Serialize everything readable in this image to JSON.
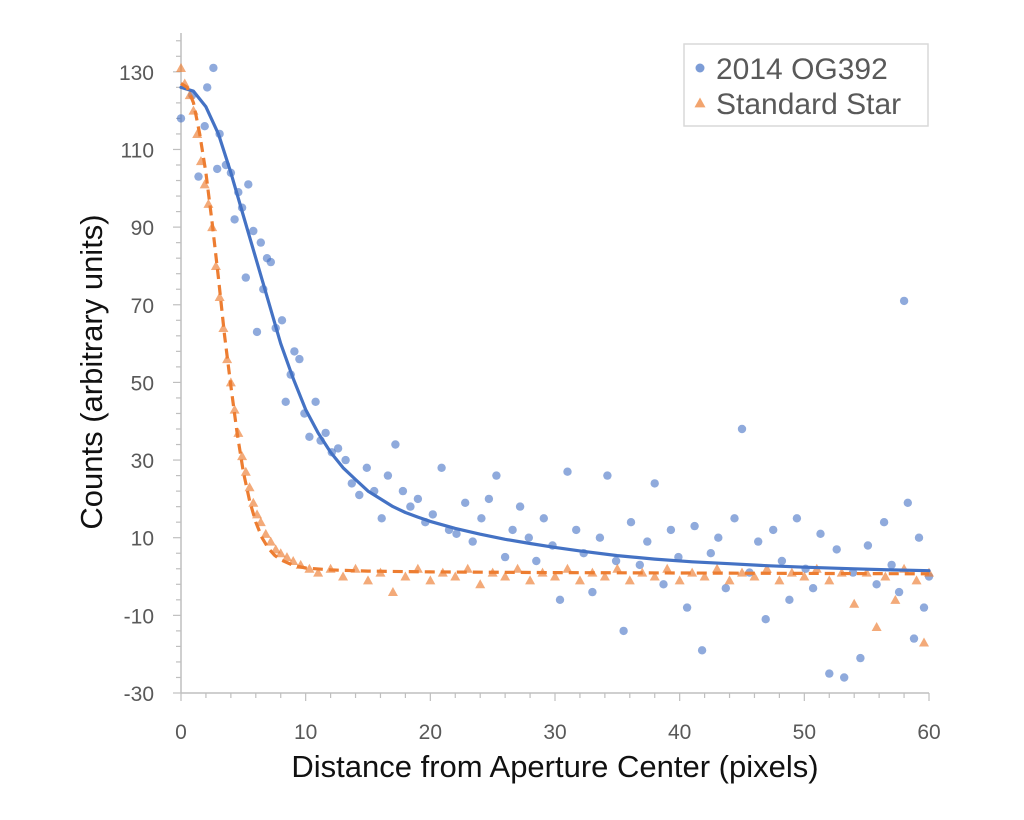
{
  "chart_data": {
    "type": "scatter",
    "title": "",
    "xlabel": "Distance from Aperture Center (pixels)",
    "ylabel": "Counts (arbitrary units)",
    "xlim": [
      0,
      60
    ],
    "ylim": [
      -30,
      140
    ],
    "x_ticks": [
      "0",
      "10",
      "20",
      "30",
      "40",
      "50",
      "60"
    ],
    "y_ticks": [
      "130",
      "110",
      "90",
      "70",
      "50",
      "30",
      "10",
      "-10",
      "-30"
    ],
    "grid": false,
    "legend_position": "top-right",
    "colors": {
      "og392": "#4472C4",
      "standard": "#ED7D31"
    },
    "series": [
      {
        "name": "2014 OG392",
        "marker": "circle",
        "points": [
          [
            0.0,
            118
          ],
          [
            0.9,
            124
          ],
          [
            1.4,
            103
          ],
          [
            1.9,
            116
          ],
          [
            2.1,
            126
          ],
          [
            2.6,
            131
          ],
          [
            2.9,
            105
          ],
          [
            3.1,
            114
          ],
          [
            3.6,
            106
          ],
          [
            4.0,
            104
          ],
          [
            4.3,
            92
          ],
          [
            4.6,
            99
          ],
          [
            4.9,
            95
          ],
          [
            5.2,
            77
          ],
          [
            5.4,
            101
          ],
          [
            5.8,
            89
          ],
          [
            6.1,
            63
          ],
          [
            6.4,
            86
          ],
          [
            6.6,
            74
          ],
          [
            6.9,
            82
          ],
          [
            7.2,
            81
          ],
          [
            7.6,
            64
          ],
          [
            8.1,
            66
          ],
          [
            8.4,
            45
          ],
          [
            8.8,
            52
          ],
          [
            9.1,
            58
          ],
          [
            9.5,
            56
          ],
          [
            9.9,
            42
          ],
          [
            10.3,
            36
          ],
          [
            10.8,
            45
          ],
          [
            11.2,
            35
          ],
          [
            11.6,
            37
          ],
          [
            12.1,
            32
          ],
          [
            12.6,
            33
          ],
          [
            13.2,
            30
          ],
          [
            13.7,
            24
          ],
          [
            14.3,
            21
          ],
          [
            14.9,
            28
          ],
          [
            15.5,
            22
          ],
          [
            16.1,
            15
          ],
          [
            16.6,
            26
          ],
          [
            17.2,
            34
          ],
          [
            17.8,
            22
          ],
          [
            18.4,
            18
          ],
          [
            19.0,
            20
          ],
          [
            19.6,
            14
          ],
          [
            20.2,
            16
          ],
          [
            20.9,
            28
          ],
          [
            21.5,
            12
          ],
          [
            22.1,
            11
          ],
          [
            22.8,
            19
          ],
          [
            23.4,
            9
          ],
          [
            24.1,
            15
          ],
          [
            24.7,
            20
          ],
          [
            25.3,
            26
          ],
          [
            26.0,
            5
          ],
          [
            26.6,
            12
          ],
          [
            27.2,
            18
          ],
          [
            27.9,
            10
          ],
          [
            28.5,
            4
          ],
          [
            29.1,
            15
          ],
          [
            29.8,
            8
          ],
          [
            30.4,
            -6
          ],
          [
            31.0,
            27
          ],
          [
            31.7,
            12
          ],
          [
            32.3,
            6
          ],
          [
            33.0,
            -4
          ],
          [
            33.6,
            10
          ],
          [
            34.2,
            26
          ],
          [
            34.9,
            4
          ],
          [
            35.5,
            -14
          ],
          [
            36.1,
            14
          ],
          [
            36.8,
            3
          ],
          [
            37.4,
            9
          ],
          [
            38.0,
            24
          ],
          [
            38.7,
            -2
          ],
          [
            39.3,
            12
          ],
          [
            39.9,
            5
          ],
          [
            40.6,
            -8
          ],
          [
            41.2,
            13
          ],
          [
            41.8,
            -19
          ],
          [
            42.5,
            6
          ],
          [
            43.1,
            10
          ],
          [
            43.7,
            -3
          ],
          [
            44.4,
            15
          ],
          [
            45.0,
            38
          ],
          [
            45.6,
            1
          ],
          [
            46.3,
            9
          ],
          [
            46.9,
            -11
          ],
          [
            47.5,
            12
          ],
          [
            48.2,
            4
          ],
          [
            48.8,
            -6
          ],
          [
            49.4,
            15
          ],
          [
            50.1,
            2
          ],
          [
            50.7,
            -3
          ],
          [
            51.3,
            11
          ],
          [
            52.0,
            -25
          ],
          [
            52.6,
            7
          ],
          [
            53.2,
            -26
          ],
          [
            53.9,
            1
          ],
          [
            54.5,
            -21
          ],
          [
            55.1,
            8
          ],
          [
            55.8,
            -2
          ],
          [
            56.4,
            14
          ],
          [
            57.0,
            3
          ],
          [
            57.6,
            -4
          ],
          [
            58.0,
            71
          ],
          [
            58.3,
            19
          ],
          [
            58.8,
            -16
          ],
          [
            59.2,
            10
          ],
          [
            59.6,
            -8
          ],
          [
            60.0,
            0
          ]
        ]
      },
      {
        "name": "Standard Star",
        "marker": "triangle",
        "points": [
          [
            0.0,
            131
          ],
          [
            0.3,
            127
          ],
          [
            0.7,
            124
          ],
          [
            1.0,
            120
          ],
          [
            1.3,
            114
          ],
          [
            1.6,
            107
          ],
          [
            1.9,
            101
          ],
          [
            2.2,
            96
          ],
          [
            2.5,
            90
          ],
          [
            2.8,
            80
          ],
          [
            3.1,
            72
          ],
          [
            3.4,
            64
          ],
          [
            3.7,
            56
          ],
          [
            4.0,
            50
          ],
          [
            4.3,
            43
          ],
          [
            4.6,
            37
          ],
          [
            4.9,
            31
          ],
          [
            5.2,
            27
          ],
          [
            5.5,
            23
          ],
          [
            5.8,
            19
          ],
          [
            6.1,
            16
          ],
          [
            6.4,
            14
          ],
          [
            6.8,
            11
          ],
          [
            7.2,
            9
          ],
          [
            7.6,
            7
          ],
          [
            8.0,
            6
          ],
          [
            8.5,
            5
          ],
          [
            9.0,
            4
          ],
          [
            9.6,
            3
          ],
          [
            10.3,
            2
          ],
          [
            11.0,
            1
          ],
          [
            12.0,
            2
          ],
          [
            13.0,
            0
          ],
          [
            14.0,
            2
          ],
          [
            15.0,
            -1
          ],
          [
            16.0,
            1
          ],
          [
            17.0,
            -4
          ],
          [
            18.0,
            0
          ],
          [
            19.0,
            2
          ],
          [
            20.0,
            -1
          ],
          [
            21.0,
            1
          ],
          [
            22.0,
            0
          ],
          [
            23.0,
            2
          ],
          [
            24.0,
            -2
          ],
          [
            25.0,
            1
          ],
          [
            26.0,
            0
          ],
          [
            27.0,
            2
          ],
          [
            28.0,
            -1
          ],
          [
            29.0,
            1
          ],
          [
            30.0,
            0
          ],
          [
            31.0,
            2
          ],
          [
            32.0,
            -1
          ],
          [
            33.0,
            1
          ],
          [
            34.0,
            0
          ],
          [
            35.0,
            2
          ],
          [
            36.0,
            -1
          ],
          [
            37.0,
            1
          ],
          [
            38.0,
            0
          ],
          [
            39.0,
            2
          ],
          [
            40.0,
            -1
          ],
          [
            41.0,
            1
          ],
          [
            42.0,
            0
          ],
          [
            43.0,
            2
          ],
          [
            44.0,
            -1
          ],
          [
            45.0,
            1
          ],
          [
            46.0,
            0
          ],
          [
            47.0,
            2
          ],
          [
            48.0,
            -1
          ],
          [
            49.0,
            1
          ],
          [
            50.0,
            0
          ],
          [
            51.0,
            2
          ],
          [
            52.0,
            -1
          ],
          [
            53.0,
            1
          ],
          [
            54.0,
            -7
          ],
          [
            55.0,
            1
          ],
          [
            55.8,
            -13
          ],
          [
            56.5,
            0
          ],
          [
            57.3,
            -6
          ],
          [
            58.0,
            2
          ],
          [
            59.0,
            -1
          ],
          [
            59.6,
            -17
          ],
          [
            60.0,
            1
          ]
        ]
      },
      {
        "name": "",
        "type": "line",
        "line_style": "solid",
        "color": "#4472C4",
        "points": [
          [
            0,
            126
          ],
          [
            1,
            125
          ],
          [
            2,
            121
          ],
          [
            3,
            114
          ],
          [
            4,
            104
          ],
          [
            5,
            93
          ],
          [
            6,
            82
          ],
          [
            7,
            71
          ],
          [
            8,
            60
          ],
          [
            9,
            51
          ],
          [
            10,
            43
          ],
          [
            11,
            37
          ],
          [
            12,
            32
          ],
          [
            13,
            28
          ],
          [
            14,
            25
          ],
          [
            15,
            22
          ],
          [
            16,
            20
          ],
          [
            17,
            18
          ],
          [
            18,
            16.5
          ],
          [
            19,
            15.3
          ],
          [
            20,
            14.2
          ],
          [
            22,
            12.4
          ],
          [
            24,
            10.9
          ],
          [
            26,
            9.6
          ],
          [
            28,
            8.5
          ],
          [
            30,
            7.5
          ],
          [
            32,
            6.6
          ],
          [
            35,
            5.4
          ],
          [
            38,
            4.5
          ],
          [
            41,
            3.8
          ],
          [
            44,
            3.3
          ],
          [
            47,
            2.8
          ],
          [
            50,
            2.4
          ],
          [
            54,
            2.0
          ],
          [
            57,
            1.7
          ],
          [
            60,
            1.5
          ]
        ]
      },
      {
        "name": "",
        "type": "line",
        "line_style": "dashed",
        "color": "#ED7D31",
        "points": [
          [
            0,
            127
          ],
          [
            0.5,
            126
          ],
          [
            1,
            122
          ],
          [
            1.5,
            114
          ],
          [
            2,
            104
          ],
          [
            2.5,
            91
          ],
          [
            3,
            77
          ],
          [
            3.5,
            62
          ],
          [
            4,
            49
          ],
          [
            4.5,
            37
          ],
          [
            5,
            27
          ],
          [
            5.5,
            19.5
          ],
          [
            6,
            14
          ],
          [
            6.5,
            10
          ],
          [
            7,
            7.3
          ],
          [
            7.5,
            5.5
          ],
          [
            8,
            4.3
          ],
          [
            9,
            2.9
          ],
          [
            10,
            2.2
          ],
          [
            12,
            1.7
          ],
          [
            15,
            1.4
          ],
          [
            20,
            1.2
          ],
          [
            30,
            1.0
          ],
          [
            40,
            0.9
          ],
          [
            50,
            0.8
          ],
          [
            60,
            0.7
          ]
        ]
      }
    ]
  }
}
